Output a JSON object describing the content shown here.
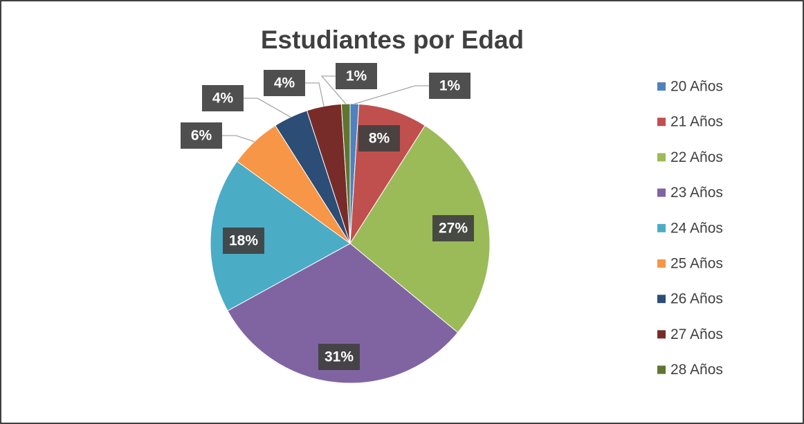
{
  "chart_data": {
    "type": "pie",
    "title": "Estudiantes por Edad",
    "categories": [
      "20 Años",
      "21 Años",
      "22 Años",
      "23 Años",
      "24 Años",
      "25 Años",
      "26 Años",
      "27 Años",
      "28 Años"
    ],
    "values": [
      1,
      8,
      27,
      31,
      18,
      6,
      4,
      4,
      1
    ],
    "value_labels": [
      "1%",
      "8%",
      "27%",
      "31%",
      "18%",
      "6%",
      "4%",
      "4%",
      "1%"
    ],
    "colors": [
      "#4f81bd",
      "#c0504d",
      "#9bbb59",
      "#8064a2",
      "#4bacc6",
      "#f79646",
      "#2c4d75",
      "#772c2a",
      "#5f7530"
    ],
    "legend": "right"
  }
}
